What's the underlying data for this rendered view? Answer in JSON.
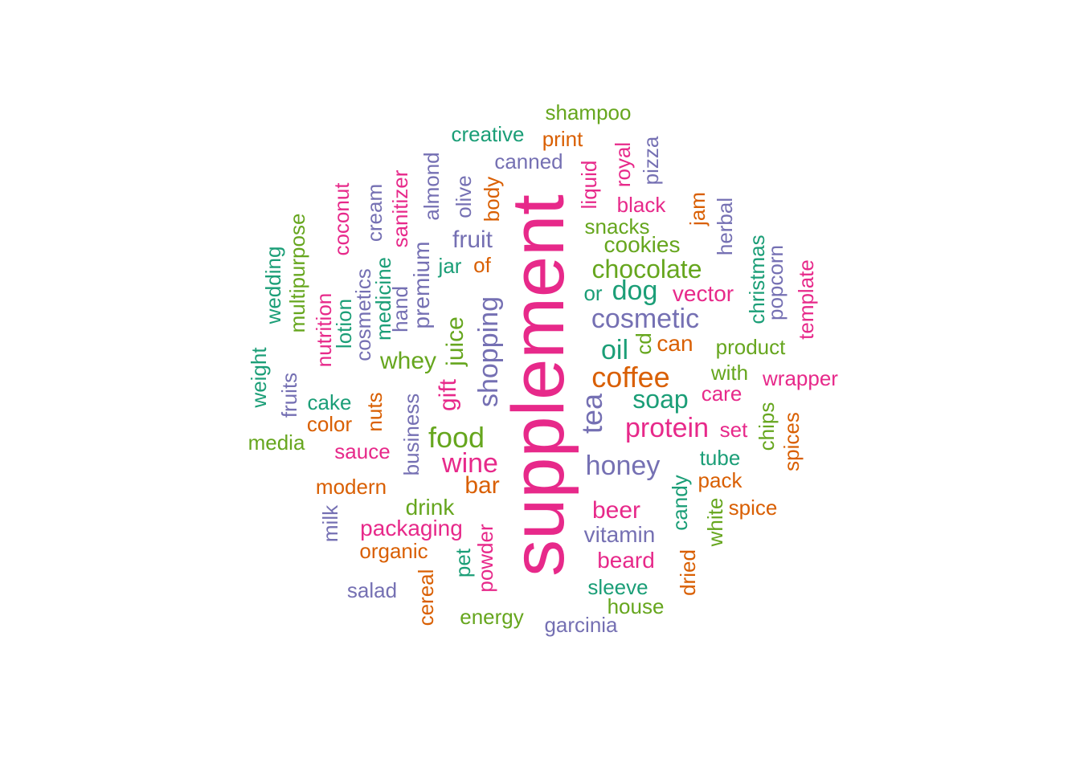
{
  "palette": [
    "#1b9e77",
    "#d95f02",
    "#7570b3",
    "#e7298a",
    "#66a61e"
  ],
  "words": [
    {
      "text": "supplement",
      "color": 3
    },
    {
      "text": "shampoo",
      "color": 4
    },
    {
      "text": "creative",
      "color": 0
    },
    {
      "text": "print",
      "color": 1
    },
    {
      "text": "canned",
      "color": 2
    },
    {
      "text": "pizza",
      "color": 2
    },
    {
      "text": "royal",
      "color": 3
    },
    {
      "text": "liquid",
      "color": 3
    },
    {
      "text": "black",
      "color": 3
    },
    {
      "text": "almond",
      "color": 2
    },
    {
      "text": "sanitizer",
      "color": 3
    },
    {
      "text": "olive",
      "color": 2
    },
    {
      "text": "body",
      "color": 1
    },
    {
      "text": "cream",
      "color": 2
    },
    {
      "text": "coconut",
      "color": 3
    },
    {
      "text": "snacks",
      "color": 4
    },
    {
      "text": "jam",
      "color": 1
    },
    {
      "text": "herbal",
      "color": 2
    },
    {
      "text": "fruit",
      "color": 2
    },
    {
      "text": "cookies",
      "color": 4
    },
    {
      "text": "multipurpose",
      "color": 4
    },
    {
      "text": "jar",
      "color": 0
    },
    {
      "text": "of",
      "color": 1
    },
    {
      "text": "chocolate",
      "color": 4
    },
    {
      "text": "wedding",
      "color": 0
    },
    {
      "text": "premium",
      "color": 2
    },
    {
      "text": "medicine",
      "color": 0
    },
    {
      "text": "cosmetics",
      "color": 2
    },
    {
      "text": "hand",
      "color": 2
    },
    {
      "text": "christmas",
      "color": 0
    },
    {
      "text": "popcorn",
      "color": 2
    },
    {
      "text": "template",
      "color": 3
    },
    {
      "text": "dog",
      "color": 0
    },
    {
      "text": "or",
      "color": 0
    },
    {
      "text": "vector",
      "color": 3
    },
    {
      "text": "nutrition",
      "color": 3
    },
    {
      "text": "lotion",
      "color": 0
    },
    {
      "text": "shopping",
      "color": 2
    },
    {
      "text": "juice",
      "color": 4
    },
    {
      "text": "cosmetic",
      "color": 2
    },
    {
      "text": "oil",
      "color": 0
    },
    {
      "text": "cd",
      "color": 4
    },
    {
      "text": "can",
      "color": 1
    },
    {
      "text": "product",
      "color": 4
    },
    {
      "text": "weight",
      "color": 0
    },
    {
      "text": "whey",
      "color": 4
    },
    {
      "text": "with",
      "color": 4
    },
    {
      "text": "coffee",
      "color": 1
    },
    {
      "text": "wrapper",
      "color": 3
    },
    {
      "text": "fruits",
      "color": 2
    },
    {
      "text": "gift",
      "color": 3
    },
    {
      "text": "tea",
      "color": 2
    },
    {
      "text": "care",
      "color": 3
    },
    {
      "text": "cake",
      "color": 0
    },
    {
      "text": "nuts",
      "color": 1
    },
    {
      "text": "soap",
      "color": 0
    },
    {
      "text": "business",
      "color": 2
    },
    {
      "text": "chips",
      "color": 4
    },
    {
      "text": "spices",
      "color": 1
    },
    {
      "text": "color",
      "color": 1
    },
    {
      "text": "protein",
      "color": 3
    },
    {
      "text": "set",
      "color": 3
    },
    {
      "text": "media",
      "color": 4
    },
    {
      "text": "food",
      "color": 4
    },
    {
      "text": "sauce",
      "color": 3
    },
    {
      "text": "tube",
      "color": 0
    },
    {
      "text": "wine",
      "color": 3
    },
    {
      "text": "honey",
      "color": 2
    },
    {
      "text": "candy",
      "color": 0
    },
    {
      "text": "pack",
      "color": 1
    },
    {
      "text": "modern",
      "color": 1
    },
    {
      "text": "bar",
      "color": 1
    },
    {
      "text": "spice",
      "color": 1
    },
    {
      "text": "white",
      "color": 4
    },
    {
      "text": "drink",
      "color": 4
    },
    {
      "text": "beer",
      "color": 3
    },
    {
      "text": "milk",
      "color": 2
    },
    {
      "text": "packaging",
      "color": 3
    },
    {
      "text": "vitamin",
      "color": 2
    },
    {
      "text": "powder",
      "color": 3
    },
    {
      "text": "organic",
      "color": 1
    },
    {
      "text": "pet",
      "color": 0
    },
    {
      "text": "dried",
      "color": 1
    },
    {
      "text": "beard",
      "color": 3
    },
    {
      "text": "salad",
      "color": 2
    },
    {
      "text": "cereal",
      "color": 1
    },
    {
      "text": "sleeve",
      "color": 0
    },
    {
      "text": "house",
      "color": 4
    },
    {
      "text": "energy",
      "color": 4
    },
    {
      "text": "garcinia",
      "color": 2
    }
  ]
}
